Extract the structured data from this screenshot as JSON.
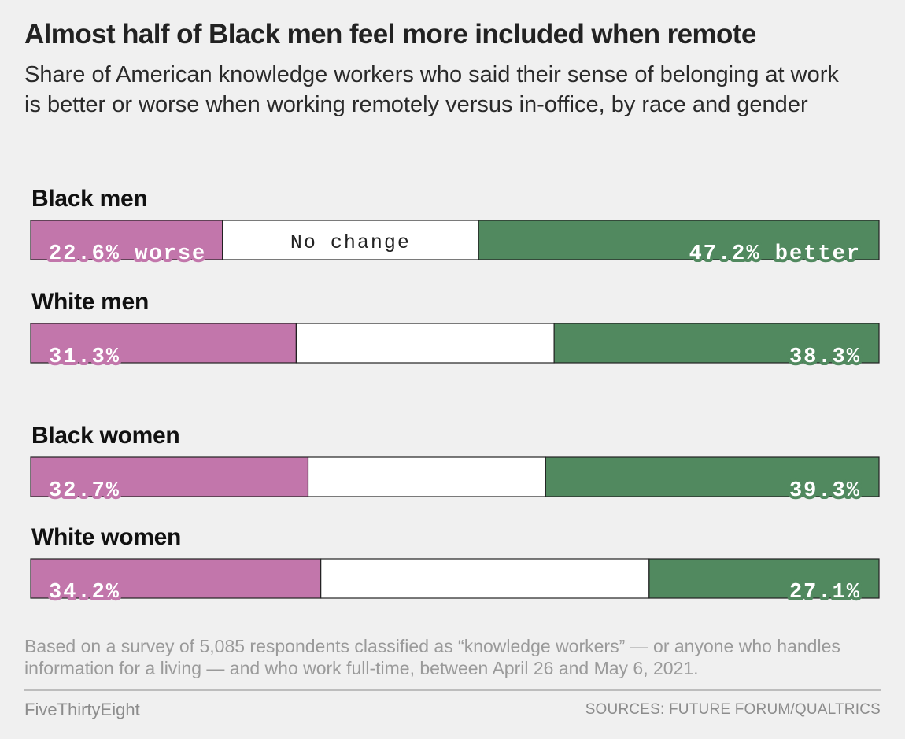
{
  "header": {
    "title": "Almost half of Black men feel more included when remote",
    "subtitle": "Share of American knowledge workers who said their sense of belonging at work is better or worse when working remotely versus in-office, by race and gender"
  },
  "chart_data": {
    "type": "bar",
    "stacked": true,
    "orientation": "horizontal",
    "categories": [
      "Black men",
      "White men",
      "Black women",
      "White women"
    ],
    "series": [
      {
        "name": "worse",
        "values": [
          22.6,
          31.3,
          32.7,
          34.2
        ]
      },
      {
        "name": "No change",
        "values": [
          30.2,
          30.4,
          28.0,
          38.7
        ]
      },
      {
        "name": "better",
        "values": [
          47.2,
          38.3,
          39.3,
          27.1
        ]
      }
    ],
    "labels": {
      "worse": [
        "22.6% worse",
        "31.3%",
        "32.7%",
        "34.2%"
      ],
      "no_change": [
        "No change",
        "",
        "",
        ""
      ],
      "better": [
        "47.2% better",
        "38.3%",
        "39.3%",
        "27.1%"
      ]
    },
    "xlim": [
      0,
      100
    ],
    "grid": false,
    "colors": {
      "worse": "#c276ab",
      "no_change": "#ffffff",
      "better": "#51895f",
      "border": "#222222"
    }
  },
  "footer": {
    "note": "Based on a survey of 5,085 respondents classified as “knowledge workers” — or anyone who handles information for a living — and who work full-time, between April 26 and May 6, 2021.",
    "brand": "FiveThirtyEight",
    "sources": "SOURCES: FUTURE FORUM/QUALTRICS"
  }
}
